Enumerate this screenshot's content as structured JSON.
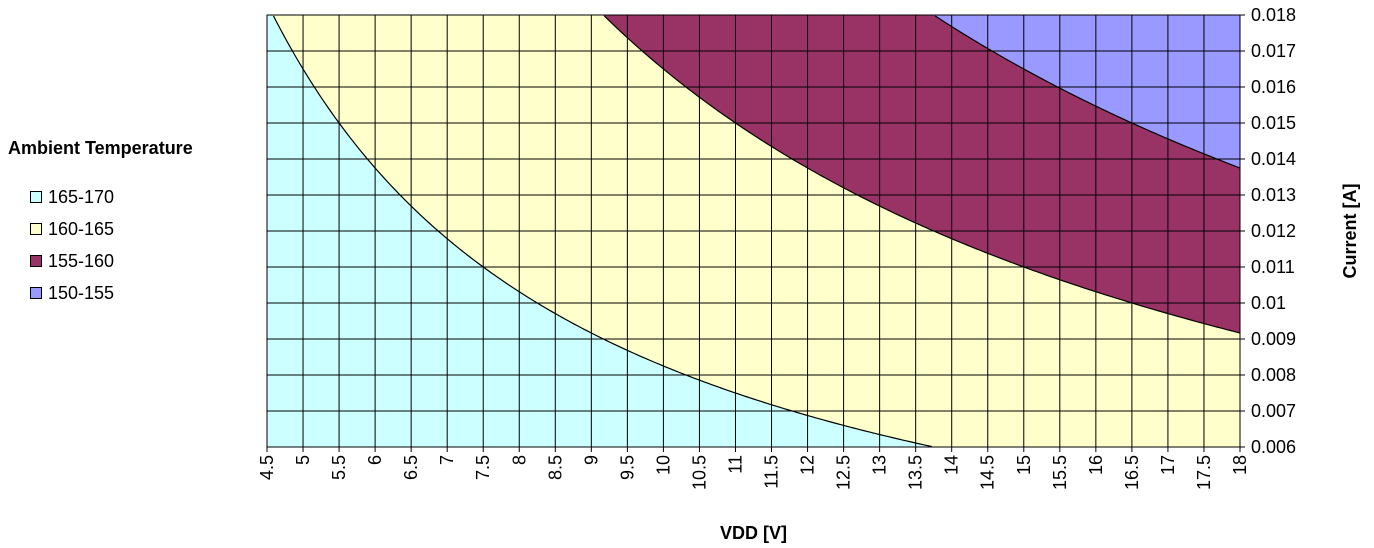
{
  "chart_data": {
    "type": "area",
    "xlabel": "VDD [V]",
    "ylabel": "Current  [A]",
    "xlim": [
      4.5,
      18
    ],
    "ylim": [
      0.006,
      0.018
    ],
    "x_ticks": [
      "4.5",
      "5",
      "5.5",
      "6",
      "6.5",
      "7",
      "7.5",
      "8",
      "8.5",
      "9",
      "9.5",
      "10",
      "10.5",
      "11",
      "11.5",
      "12",
      "12.5",
      "13",
      "13.5",
      "14",
      "14.5",
      "15",
      "15.5",
      "16",
      "16.5",
      "17",
      "17.5",
      "18"
    ],
    "y_ticks": [
      "0.006",
      "0.007",
      "0.008",
      "0.009",
      "0.01",
      "0.011",
      "0.012",
      "0.013",
      "0.014",
      "0.015",
      "0.016",
      "0.017",
      "0.018"
    ],
    "y_axis_position": "right",
    "grid": true,
    "legend": {
      "title": "Ambient Temperature",
      "position": "left",
      "entries": [
        {
          "label": "165-170",
          "color": "#ccffff"
        },
        {
          "label": "160-165",
          "color": "#ffffcc"
        },
        {
          "label": "155-160",
          "color": "#993366"
        },
        {
          "label": "150-155",
          "color": "#9999ff"
        }
      ]
    },
    "boundaries": [
      {
        "between": [
          "165-170",
          "160-165"
        ],
        "power_product_W": 0.0825
      },
      {
        "between": [
          "160-165",
          "155-160"
        ],
        "power_product_W": 0.165
      },
      {
        "between": [
          "155-160",
          "150-155"
        ],
        "power_product_W": 0.2475
      }
    ]
  }
}
